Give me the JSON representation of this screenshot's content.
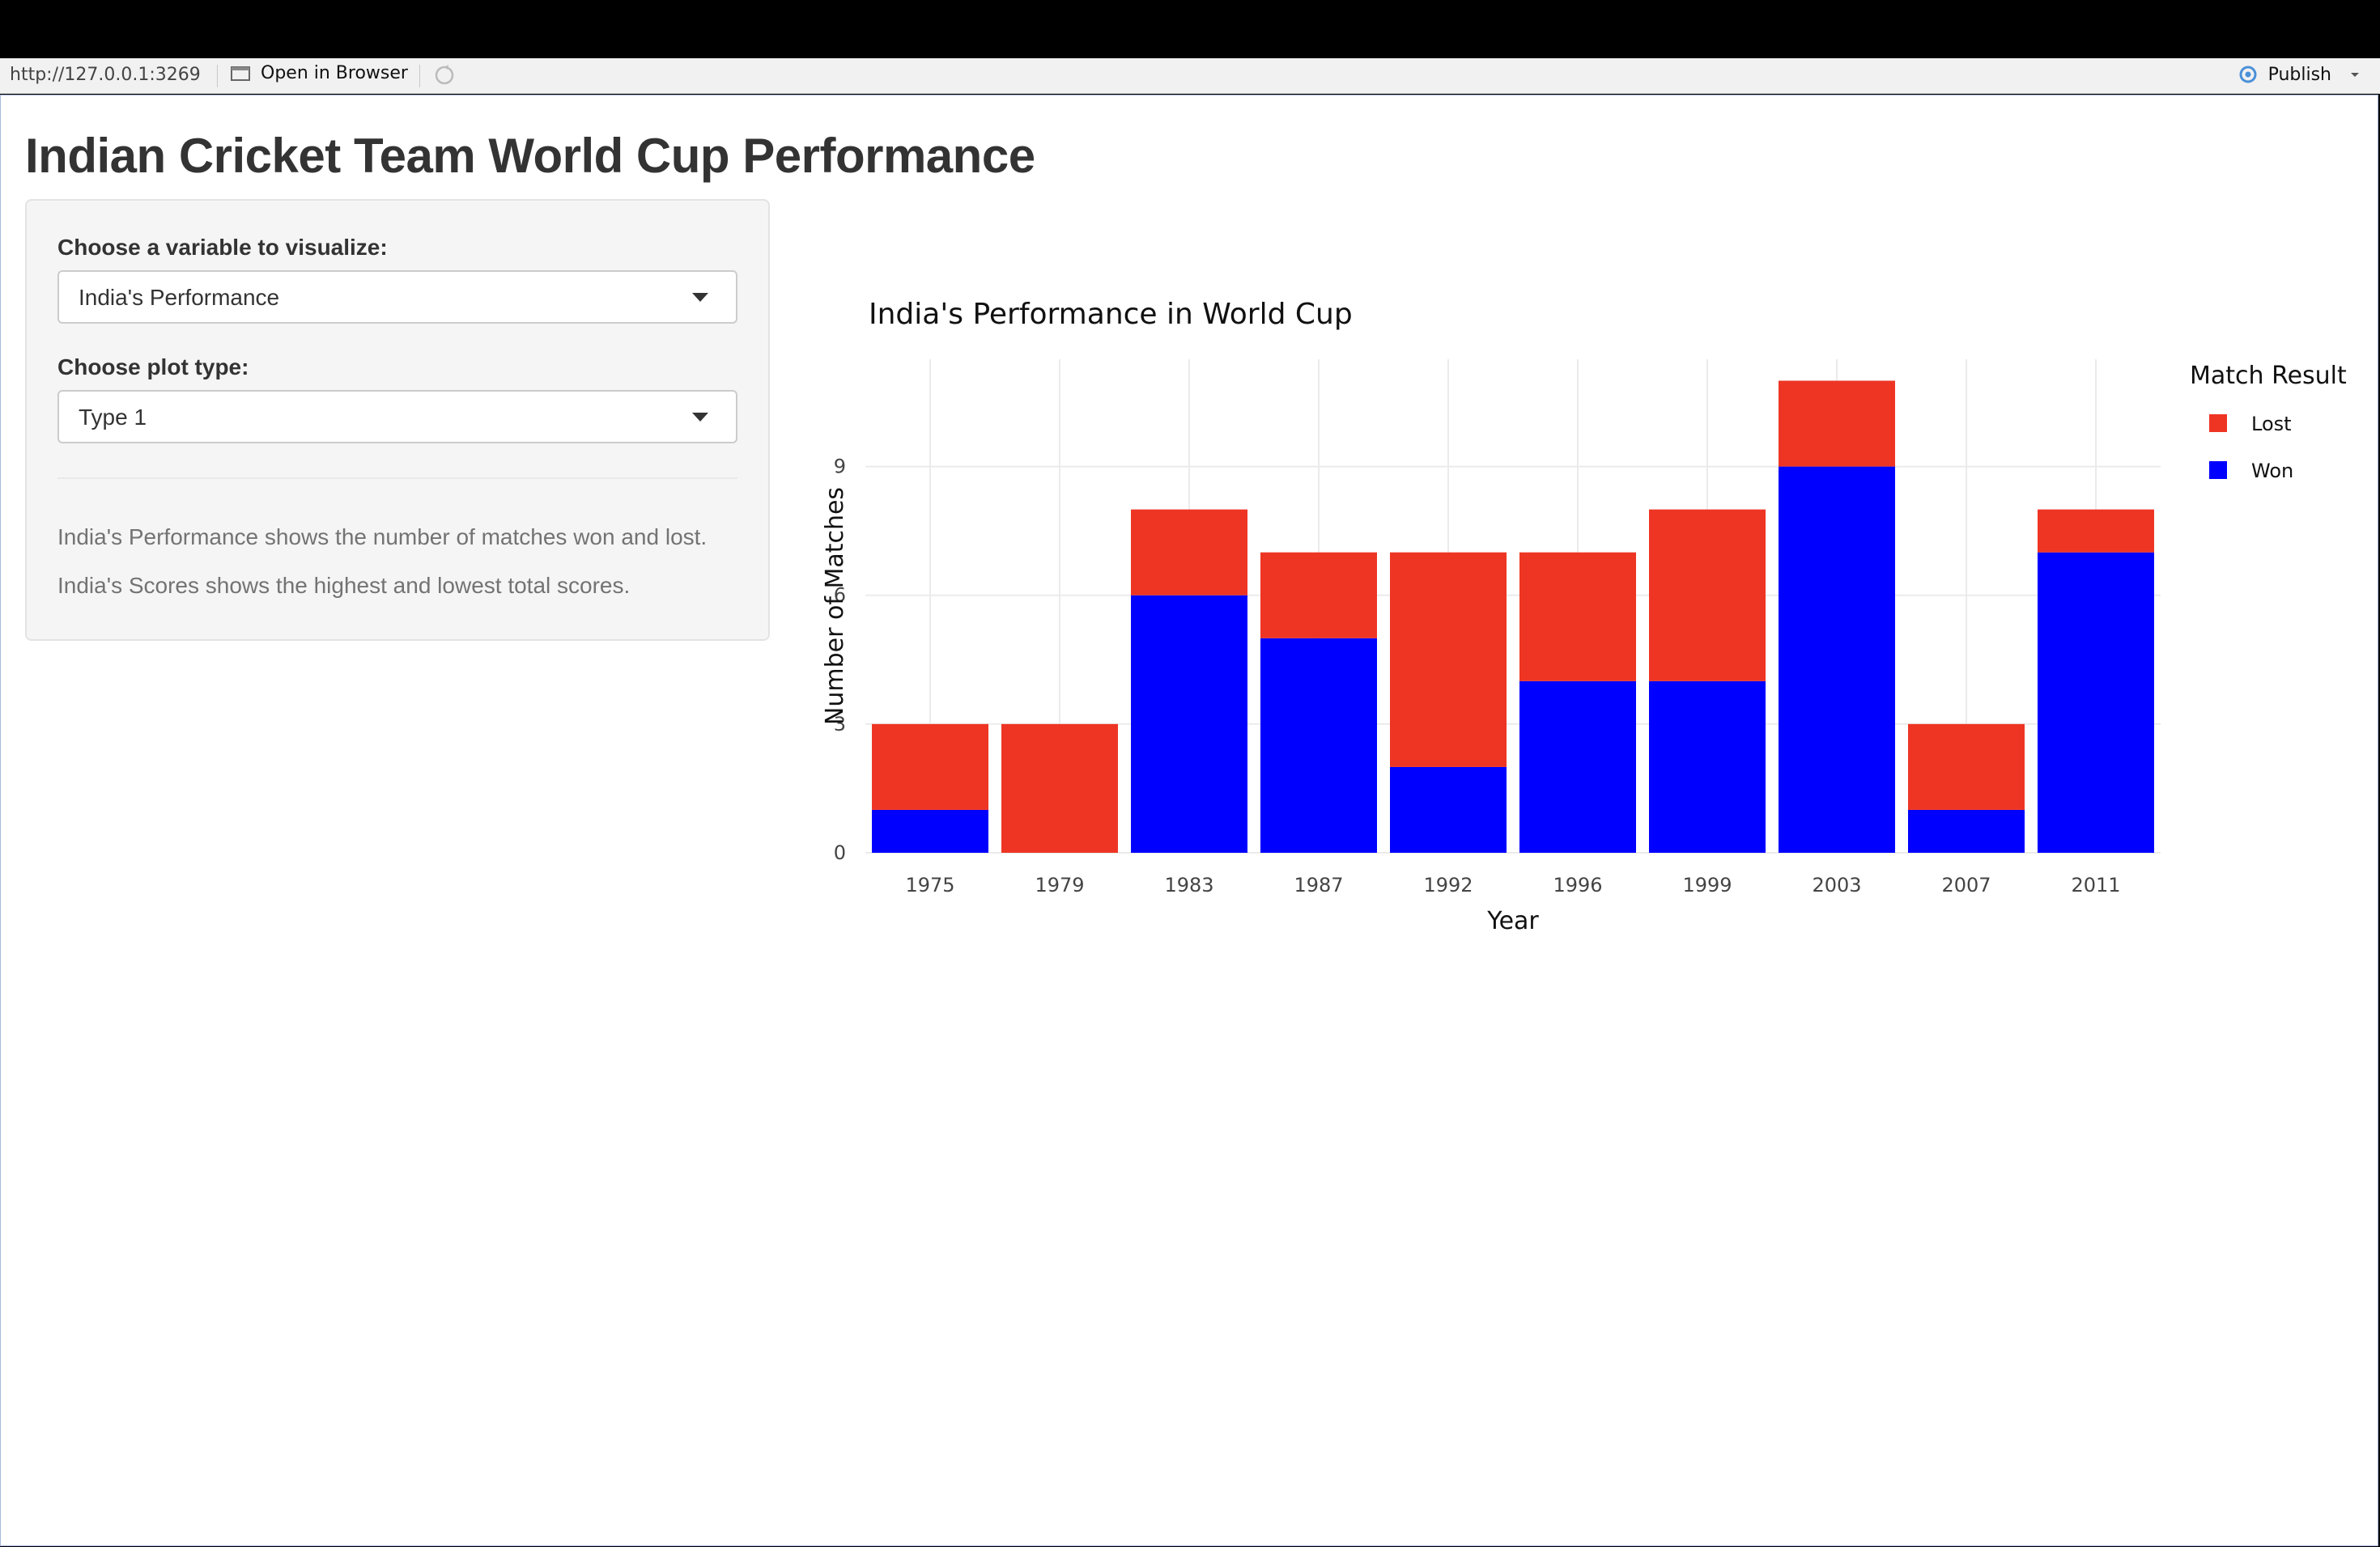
{
  "toolbar": {
    "url": "http://127.0.0.1:3269",
    "open_in_browser": "Open in Browser",
    "publish": "Publish",
    "icons": [
      "open-window-icon",
      "refresh-icon",
      "publish-icon",
      "caret-down-icon"
    ]
  },
  "app": {
    "title": "Indian Cricket Team World Cup Performance",
    "sidebar": {
      "variable_label": "Choose a variable to visualize:",
      "variable_value": "India's Performance",
      "plot_type_label": "Choose plot type:",
      "plot_type_value": "Type 1",
      "help_1": "India's Performance shows the number of matches won and lost.",
      "help_2": "India's Scores shows the highest and lowest total scores."
    }
  },
  "chart_data": {
    "type": "bar",
    "stacked": true,
    "title": "India's Performance in World Cup",
    "xlabel": "Year",
    "ylabel": "Number of Matches",
    "categories": [
      "1975",
      "1979",
      "1983",
      "1987",
      "1992",
      "1996",
      "1999",
      "2003",
      "2007",
      "2011"
    ],
    "series": [
      {
        "name": "Won",
        "color": "#0000ff",
        "values": [
          1,
          0,
          6,
          5,
          2,
          4,
          4,
          9,
          1,
          7
        ]
      },
      {
        "name": "Lost",
        "color": "#ee3524",
        "values": [
          2,
          3,
          2,
          2,
          5,
          3,
          4,
          2,
          2,
          1
        ]
      }
    ],
    "ylim": [
      0,
      11.5
    ],
    "yticks": [
      0,
      3,
      6,
      9
    ],
    "legend_title": "Match Result",
    "legend_order": [
      "Lost",
      "Won"
    ],
    "legend_position": "top-right",
    "grid": true
  }
}
